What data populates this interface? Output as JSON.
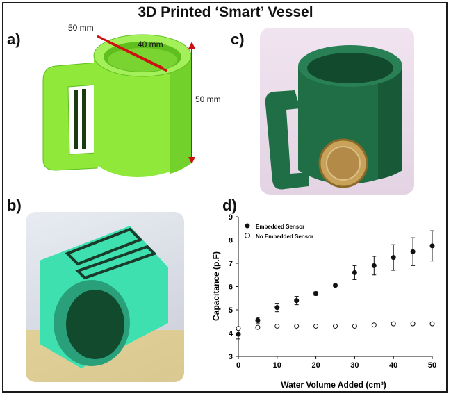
{
  "figure": {
    "title": "3D Printed ‘Smart’ Vessel",
    "panel_labels": {
      "a": "a)",
      "b": "b)",
      "c": "c)",
      "d": "d)"
    }
  },
  "panel_a": {
    "dimension_labels": {
      "outer_diameter": "50 mm",
      "inner_diameter": "40 mm",
      "height": "50 mm"
    },
    "colors": {
      "body": "#8fe83a",
      "body_dark": "#5fbf1f",
      "dimension_arrows": "#cc1111"
    }
  },
  "panel_b": {
    "colors": {
      "body": "#3fe0b0",
      "inner": "#1f7a4a",
      "background": "#d8dde6"
    }
  },
  "panel_c": {
    "colors": {
      "body": "#1f6e45",
      "coin": "#c9a25a",
      "background": "#e6d8e6"
    }
  },
  "chart_data": {
    "type": "scatter",
    "title": "",
    "xlabel": "Water Volume Added (cm³)",
    "ylabel": "Capacitance (p.F)",
    "xlim": [
      0,
      50
    ],
    "ylim": [
      3,
      9
    ],
    "xticks": [
      0,
      10,
      20,
      30,
      40,
      50
    ],
    "yticks": [
      3,
      4,
      5,
      6,
      7,
      8,
      9
    ],
    "legend_position": "top-left",
    "grid": false,
    "series": [
      {
        "name": "Embedded Sensor",
        "marker": "filled-circle",
        "x": [
          0,
          5,
          10,
          15,
          20,
          25,
          30,
          35,
          40,
          45,
          50
        ],
        "y": [
          3.95,
          4.55,
          5.1,
          5.4,
          5.7,
          6.05,
          6.6,
          6.9,
          7.25,
          7.5,
          7.75
        ],
        "yerr": [
          0.2,
          0.12,
          0.18,
          0.18,
          0.08,
          0.05,
          0.3,
          0.4,
          0.55,
          0.6,
          0.65
        ]
      },
      {
        "name": "No Embedded Sensor",
        "marker": "open-circle",
        "x": [
          0,
          5,
          10,
          15,
          20,
          25,
          30,
          35,
          40,
          45,
          50
        ],
        "y": [
          4.2,
          4.25,
          4.3,
          4.3,
          4.3,
          4.3,
          4.3,
          4.35,
          4.4,
          4.4,
          4.4
        ]
      }
    ]
  }
}
